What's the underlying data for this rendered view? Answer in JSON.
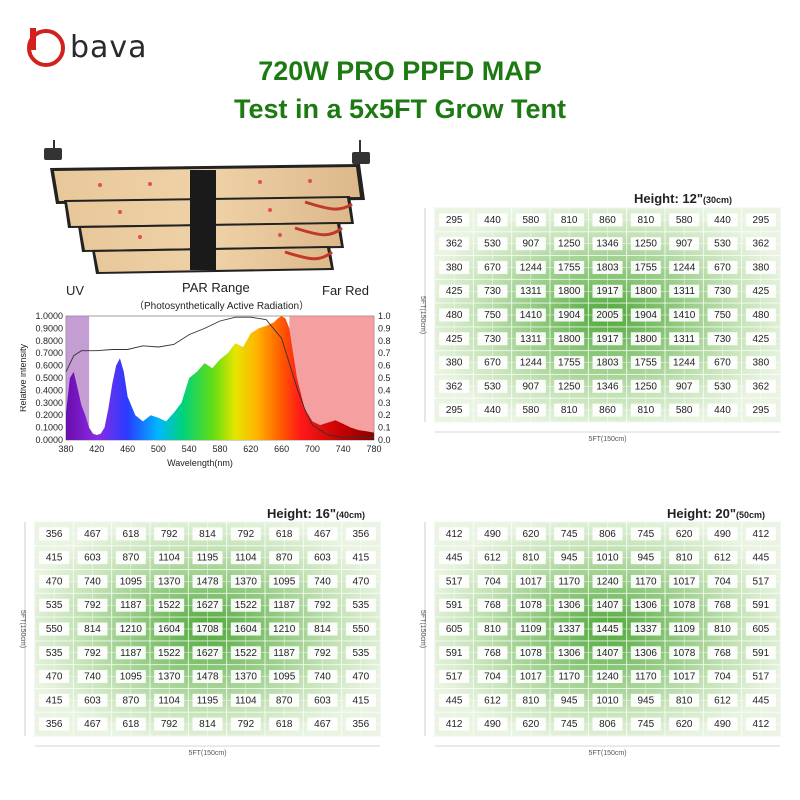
{
  "logo": {
    "text": "bava",
    "color": "#d2211c"
  },
  "header": {
    "title": "720W PRO PPFD MAP",
    "subtitle": "Test in a 5x5FT Grow Tent",
    "color": "#1d7a12"
  },
  "spectrum": {
    "uv_label": "UV",
    "par_label": "PAR Range",
    "par_sub": "（Photosynthetically Active Radiation）",
    "far_red_label": "Far Red",
    "ylabel": "Relative intensity",
    "xlabel": "Wavelength(nm)",
    "y_ticks_left": [
      "1.0000",
      "0.9000",
      "0.8000",
      "0.7000",
      "0.6000",
      "0.5000",
      "0.4000",
      "0.3000",
      "0.2000",
      "0.1000",
      "0.0000"
    ],
    "y_ticks_right": [
      "1.0",
      "0.9",
      "0.8",
      "0.7",
      "0.6",
      "0.5",
      "0.4",
      "0.3",
      "0.2",
      "0.1",
      "0.0"
    ],
    "x_ticks": [
      "380",
      "420",
      "460",
      "500",
      "540",
      "580",
      "620",
      "660",
      "700",
      "740",
      "780"
    ]
  },
  "chart_data": [
    {
      "type": "line",
      "xlabel": "Wavelength(nm)",
      "ylabel": "Relative intensity",
      "xlim": [
        380,
        780
      ],
      "ylim": [
        0,
        1
      ],
      "regions": [
        {
          "name": "UV",
          "x": [
            380,
            410
          ],
          "color": "#b07cc4"
        },
        {
          "name": "Far Red",
          "x": [
            670,
            780
          ],
          "color": "#f08080"
        }
      ],
      "series": [
        {
          "x": [
            380,
            385,
            390,
            395,
            400,
            405,
            410,
            415,
            420,
            425,
            430,
            435,
            440,
            445,
            450,
            455,
            460,
            470,
            480,
            490,
            500,
            510,
            520,
            530,
            540,
            550,
            560,
            570,
            580,
            590,
            600,
            610,
            620,
            630,
            640,
            650,
            655,
            660,
            665,
            670,
            675,
            680,
            690,
            700,
            710,
            720,
            730,
            740,
            750,
            760,
            770,
            780
          ],
          "y": [
            0.22,
            0.5,
            0.55,
            0.42,
            0.28,
            0.2,
            0.1,
            0.05,
            0.04,
            0.05,
            0.1,
            0.25,
            0.45,
            0.6,
            0.66,
            0.55,
            0.35,
            0.2,
            0.15,
            0.2,
            0.18,
            0.15,
            0.22,
            0.3,
            0.5,
            0.55,
            0.62,
            0.58,
            0.65,
            0.7,
            0.78,
            0.75,
            0.86,
            0.9,
            0.92,
            0.95,
            0.98,
            1.0,
            0.98,
            0.9,
            0.7,
            0.5,
            0.25,
            0.15,
            0.12,
            0.14,
            0.16,
            0.13,
            0.1,
            0.08,
            0.07,
            0.06
          ]
        },
        {
          "x": [
            380,
            390,
            400,
            410,
            420,
            440,
            460,
            480,
            500,
            520,
            540,
            560,
            580,
            600,
            620,
            640,
            660,
            680,
            690,
            700,
            720,
            740,
            760,
            780
          ],
          "y": [
            0.55,
            0.68,
            0.72,
            0.72,
            0.72,
            0.73,
            0.73,
            0.76,
            0.75,
            0.77,
            0.85,
            0.9,
            0.96,
            0.99,
            0.99,
            0.97,
            0.82,
            0.42,
            0.25,
            0.12,
            0.04,
            0.02,
            0.02,
            0.02
          ]
        }
      ]
    },
    {
      "type": "heatmap",
      "title": "Height: 12\"",
      "title_unit": "(30cm)",
      "xlabel": "5FT(150cm)",
      "ylabel": "5FT(150cm)",
      "rows": [
        [
          295,
          440,
          580,
          810,
          860,
          810,
          580,
          440,
          295
        ],
        [
          362,
          530,
          907,
          1250,
          1346,
          1250,
          907,
          530,
          362
        ],
        [
          380,
          670,
          1244,
          1755,
          1803,
          1755,
          1244,
          670,
          380
        ],
        [
          425,
          730,
          1311,
          1800,
          1917,
          1800,
          1311,
          730,
          425
        ],
        [
          480,
          750,
          1410,
          1904,
          2005,
          1904,
          1410,
          750,
          480
        ],
        [
          425,
          730,
          1311,
          1800,
          1917,
          1800,
          1311,
          730,
          425
        ],
        [
          380,
          670,
          1244,
          1755,
          1803,
          1755,
          1244,
          670,
          380
        ],
        [
          362,
          530,
          907,
          1250,
          1346,
          1250,
          907,
          530,
          362
        ],
        [
          295,
          440,
          580,
          810,
          860,
          810,
          580,
          440,
          295
        ]
      ]
    },
    {
      "type": "heatmap",
      "title": "Height: 16\"",
      "title_unit": "(40cm)",
      "xlabel": "5FT(150cm)",
      "ylabel": "5FT(150cm)",
      "rows": [
        [
          356,
          467,
          618,
          792,
          814,
          792,
          618,
          467,
          356
        ],
        [
          415,
          603,
          870,
          1104,
          1195,
          1104,
          870,
          603,
          415
        ],
        [
          470,
          740,
          1095,
          1370,
          1478,
          1370,
          1095,
          740,
          470
        ],
        [
          535,
          792,
          1187,
          1522,
          1627,
          1522,
          1187,
          792,
          535
        ],
        [
          550,
          814,
          1210,
          1604,
          1708,
          1604,
          1210,
          814,
          550
        ],
        [
          535,
          792,
          1187,
          1522,
          1627,
          1522,
          1187,
          792,
          535
        ],
        [
          470,
          740,
          1095,
          1370,
          1478,
          1370,
          1095,
          740,
          470
        ],
        [
          415,
          603,
          870,
          1104,
          1195,
          1104,
          870,
          603,
          415
        ],
        [
          356,
          467,
          618,
          792,
          814,
          792,
          618,
          467,
          356
        ]
      ]
    },
    {
      "type": "heatmap",
      "title": "Height: 20\"",
      "title_unit": "(50cm)",
      "xlabel": "5FT(150cm)",
      "ylabel": "5FT(150cm)",
      "rows": [
        [
          412,
          490,
          620,
          745,
          806,
          745,
          620,
          490,
          412
        ],
        [
          445,
          612,
          810,
          945,
          1010,
          945,
          810,
          612,
          445
        ],
        [
          517,
          704,
          1017,
          1170,
          1240,
          1170,
          1017,
          704,
          517
        ],
        [
          591,
          768,
          1078,
          1306,
          1407,
          1306,
          1078,
          768,
          591
        ],
        [
          605,
          810,
          1109,
          1337,
          1445,
          1337,
          1109,
          810,
          605
        ],
        [
          591,
          768,
          1078,
          1306,
          1407,
          1306,
          1078,
          768,
          591
        ],
        [
          517,
          704,
          1017,
          1170,
          1240,
          1170,
          1017,
          704,
          517
        ],
        [
          445,
          612,
          810,
          945,
          1010,
          945,
          810,
          612,
          445
        ],
        [
          412,
          490,
          620,
          745,
          806,
          745,
          620,
          490,
          412
        ]
      ]
    }
  ]
}
